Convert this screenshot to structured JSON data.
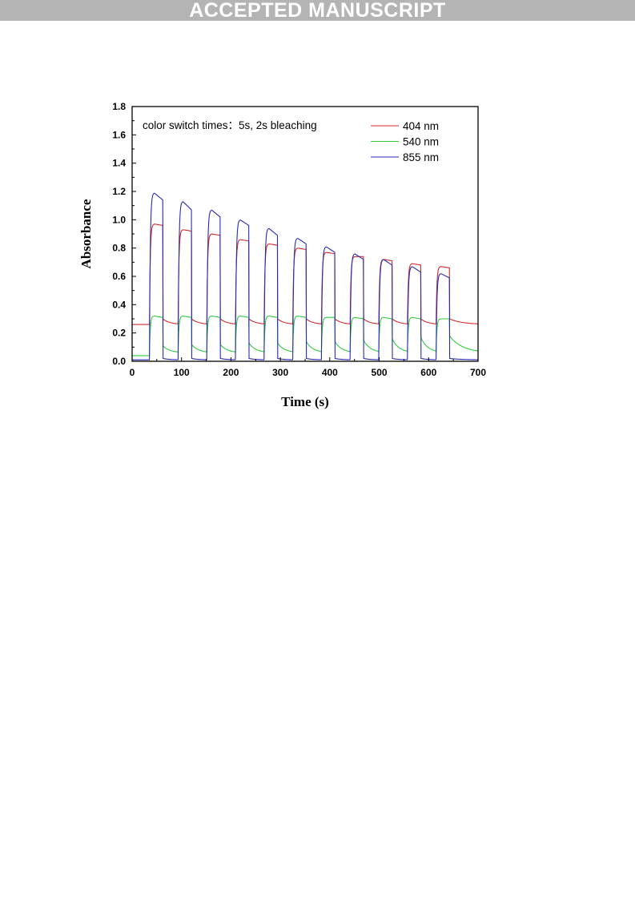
{
  "banner": {
    "text": "ACCEPTED MANUSCRIPT"
  },
  "chart_data": {
    "type": "line",
    "title": "",
    "annotation": "color switch times：5s, 2s bleaching",
    "xlabel": "Time (s)",
    "ylabel": "Absorbance",
    "xlim": [
      0,
      700
    ],
    "ylim": [
      0.0,
      1.8
    ],
    "xticks": [
      0,
      100,
      200,
      300,
      400,
      500,
      600,
      700
    ],
    "yticks": [
      0.0,
      0.2,
      0.4,
      0.6,
      0.8,
      1.0,
      1.2,
      1.4,
      1.6,
      1.8
    ],
    "x_tick_labels": [
      "0",
      "100",
      "200",
      "300",
      "400",
      "500",
      "600",
      "700"
    ],
    "y_tick_labels": [
      "0.0",
      "0.2",
      "0.4",
      "0.6",
      "0.8",
      "1.0",
      "1.2",
      "1.4",
      "1.6",
      "1.8"
    ],
    "grid": false,
    "legend_position": "top-right",
    "cycles": {
      "start_times": [
        35,
        93,
        151,
        209,
        267,
        325,
        383,
        441,
        499,
        557,
        615
      ],
      "end_times": [
        62,
        120,
        178,
        236,
        294,
        352,
        410,
        468,
        526,
        584,
        642
      ]
    },
    "series": [
      {
        "name": "404 nm",
        "color": "#d42a2a",
        "baseline": [
          0.26,
          0.26,
          0.26,
          0.26,
          0.26,
          0.26,
          0.26,
          0.26,
          0.26,
          0.26,
          0.26
        ],
        "peak": [
          0.97,
          0.93,
          0.9,
          0.86,
          0.83,
          0.8,
          0.77,
          0.74,
          0.72,
          0.69,
          0.67
        ],
        "end": [
          0.96,
          0.92,
          0.89,
          0.85,
          0.82,
          0.79,
          0.76,
          0.74,
          0.71,
          0.68,
          0.66
        ],
        "after_bleach": [
          0.3,
          0.3,
          0.3,
          0.3,
          0.3,
          0.3,
          0.3,
          0.3,
          0.3,
          0.3,
          0.3
        ]
      },
      {
        "name": "540 nm",
        "color": "#2ecc3a",
        "baseline": [
          0.04,
          0.06,
          0.06,
          0.06,
          0.06,
          0.06,
          0.06,
          0.06,
          0.06,
          0.06,
          0.06
        ],
        "peak": [
          0.32,
          0.32,
          0.32,
          0.32,
          0.32,
          0.32,
          0.31,
          0.31,
          0.31,
          0.31,
          0.3
        ],
        "end": [
          0.31,
          0.31,
          0.31,
          0.31,
          0.31,
          0.31,
          0.31,
          0.3,
          0.3,
          0.3,
          0.3
        ],
        "after_bleach": [
          0.11,
          0.12,
          0.12,
          0.13,
          0.13,
          0.14,
          0.14,
          0.15,
          0.16,
          0.17,
          0.18
        ]
      },
      {
        "name": "855 nm",
        "color": "#2a2ab4",
        "baseline": [
          0.01,
          0.01,
          0.01,
          0.01,
          0.01,
          0.01,
          0.01,
          0.01,
          0.01,
          0.01,
          0.01
        ],
        "peak": [
          1.19,
          1.13,
          1.07,
          1.0,
          0.94,
          0.87,
          0.81,
          0.76,
          0.72,
          0.67,
          0.62
        ],
        "end": [
          1.14,
          1.07,
          1.02,
          0.96,
          0.89,
          0.83,
          0.77,
          0.72,
          0.68,
          0.63,
          0.59
        ],
        "after_bleach": [
          0.02,
          0.02,
          0.02,
          0.02,
          0.02,
          0.02,
          0.02,
          0.02,
          0.02,
          0.02,
          0.02
        ]
      }
    ]
  }
}
